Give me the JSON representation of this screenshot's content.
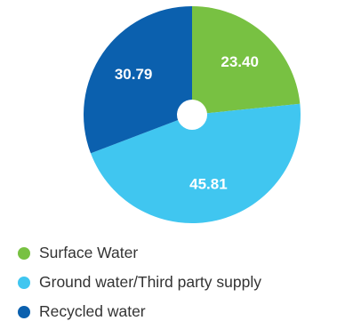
{
  "chart_data": {
    "type": "pie",
    "title": "",
    "donut_hole": true,
    "slices": [
      {
        "label": "Surface Water",
        "value": 23.4,
        "value_label": "23.40",
        "color": "#78c142"
      },
      {
        "label": "Ground water/Third party supply",
        "value": 45.81,
        "value_label": "45.81",
        "color": "#40c6f0"
      },
      {
        "label": "Recycled water",
        "value": 30.79,
        "value_label": "30.79",
        "color": "#0b60ae"
      }
    ],
    "legend_position": "bottom"
  }
}
